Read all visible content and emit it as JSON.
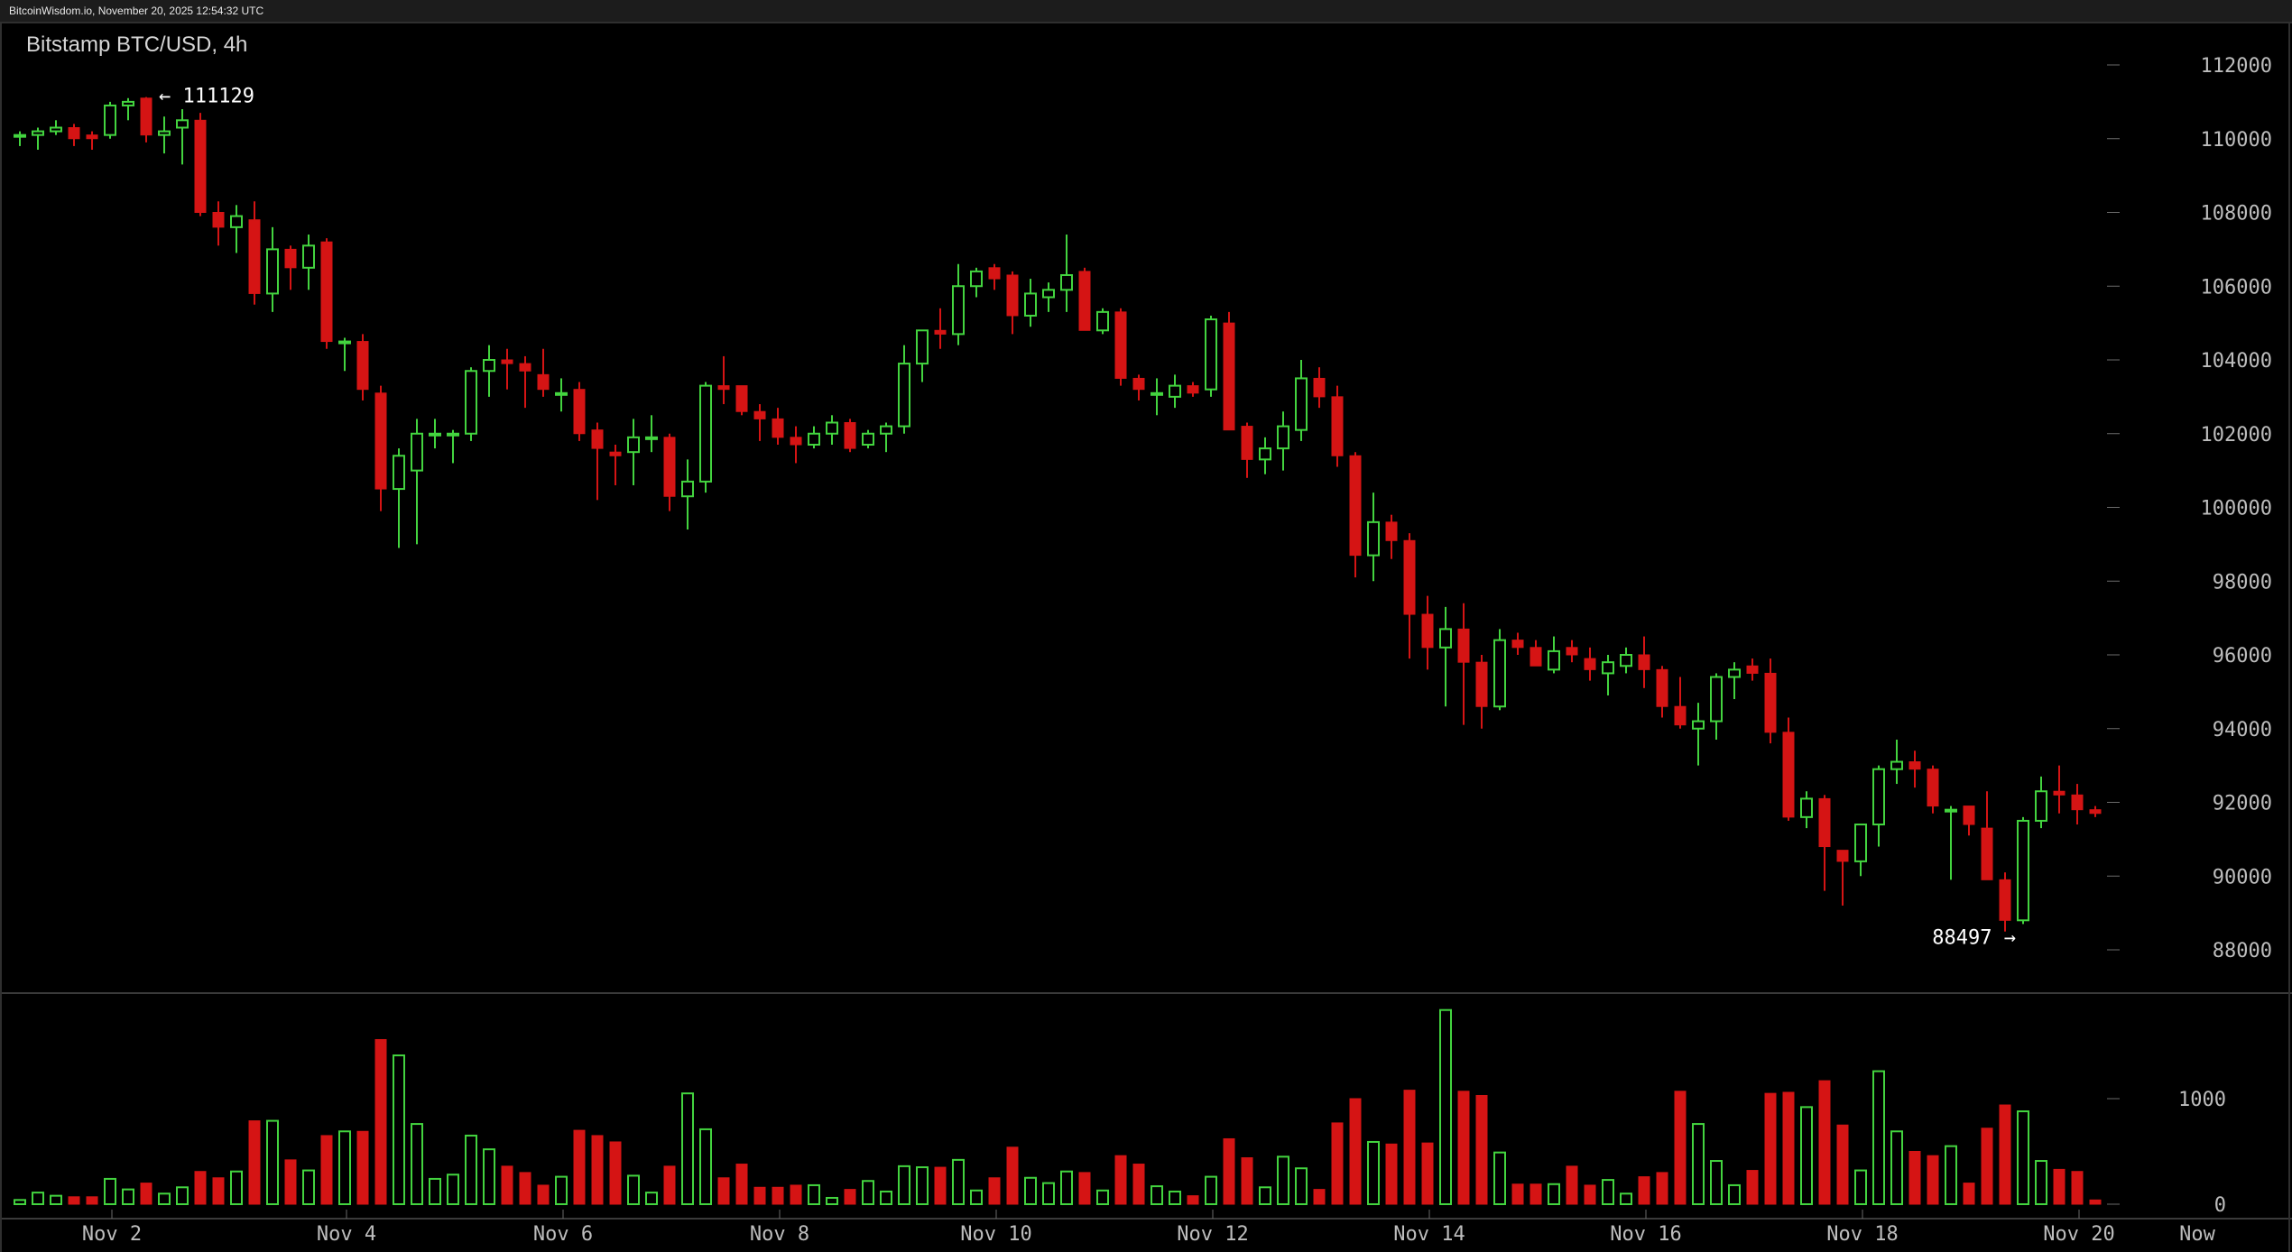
{
  "header": {
    "source_line": "BitcoinWisdom.io, November 20, 2025 12:54:32 UTC"
  },
  "chart": {
    "title": "Bitstamp BTC/USD, 4h"
  },
  "colors": {
    "up": "#43d43f",
    "down": "#d51414",
    "background": "#000000",
    "axis_text": "#bdbdbd"
  },
  "annotations": {
    "high": "← 111129",
    "low": "88497 →"
  },
  "chart_data": [
    {
      "type": "candlestick",
      "title": "Bitstamp BTC/USD, 4h",
      "interval": "4h",
      "ylim": [
        87000,
        113000
      ],
      "y_ticks": [
        88000,
        90000,
        92000,
        94000,
        96000,
        98000,
        100000,
        102000,
        104000,
        106000,
        108000,
        110000,
        112000
      ],
      "y_tick_labels": [
        "88000",
        "90000",
        "92000",
        "94000",
        "96000",
        "98000",
        "100000",
        "102000",
        "104000",
        "106000",
        "108000",
        "110000",
        "112000"
      ],
      "x_ticks": [
        {
          "label": "Nov 2",
          "index": 5
        },
        {
          "label": "Nov 4",
          "index": 18
        },
        {
          "label": "Nov 6",
          "index": 30
        },
        {
          "label": "Nov 8",
          "index": 42
        },
        {
          "label": "Nov 10",
          "index": 54
        },
        {
          "label": "Nov 12",
          "index": 66
        },
        {
          "label": "Nov 14",
          "index": 78
        },
        {
          "label": "Nov 16",
          "index": 90
        },
        {
          "label": "Nov 18",
          "index": 102
        },
        {
          "label": "Nov 20",
          "index": 114
        },
        {
          "label": "Now",
          "index": 120
        }
      ],
      "high_marker": {
        "value": 111129,
        "label": "← 111129",
        "index": 7
      },
      "low_marker": {
        "value": 88497,
        "label": "88497 →",
        "index": 111
      },
      "candles": [
        [
          110100,
          110200,
          109800,
          110100
        ],
        [
          110100,
          110300,
          109700,
          110200
        ],
        [
          110200,
          110500,
          110100,
          110300
        ],
        [
          110300,
          110400,
          109800,
          110000
        ],
        [
          110100,
          110200,
          109700,
          110000
        ],
        [
          110100,
          111000,
          110000,
          110900
        ],
        [
          110900,
          111100,
          110500,
          111000
        ],
        [
          111100,
          111129,
          109900,
          110100
        ],
        [
          110100,
          110600,
          109600,
          110200
        ],
        [
          110300,
          110800,
          109300,
          110500
        ],
        [
          110500,
          110700,
          107900,
          108000
        ],
        [
          108000,
          108300,
          107100,
          107600
        ],
        [
          107600,
          108200,
          106900,
          107900
        ],
        [
          107800,
          108300,
          105500,
          105800
        ],
        [
          105800,
          107600,
          105300,
          107000
        ],
        [
          107000,
          107100,
          105900,
          106500
        ],
        [
          106500,
          107400,
          105900,
          107100
        ],
        [
          107200,
          107300,
          104300,
          104500
        ],
        [
          104500,
          104600,
          103700,
          104500
        ],
        [
          104500,
          104700,
          102900,
          103200
        ],
        [
          103100,
          103300,
          99900,
          100500
        ],
        [
          100500,
          101600,
          98900,
          101400
        ],
        [
          101000,
          102400,
          99000,
          102000
        ],
        [
          102000,
          102400,
          101600,
          102000
        ],
        [
          102000,
          102100,
          101200,
          102000
        ],
        [
          102000,
          103800,
          101800,
          103700
        ],
        [
          103700,
          104400,
          103000,
          104000
        ],
        [
          104000,
          104300,
          103200,
          103900
        ],
        [
          103900,
          104100,
          102700,
          103700
        ],
        [
          103600,
          104300,
          103000,
          103200
        ],
        [
          103100,
          103500,
          102600,
          103100
        ],
        [
          103200,
          103400,
          101800,
          102000
        ],
        [
          102100,
          102300,
          100200,
          101600
        ],
        [
          101500,
          101700,
          100600,
          101400
        ],
        [
          101500,
          102400,
          100600,
          101900
        ],
        [
          101900,
          102500,
          101500,
          101900
        ],
        [
          101900,
          102000,
          99900,
          100300
        ],
        [
          100300,
          101300,
          99400,
          100700
        ],
        [
          100700,
          103400,
          100400,
          103300
        ],
        [
          103300,
          104100,
          102800,
          103200
        ],
        [
          103300,
          103300,
          102500,
          102600
        ],
        [
          102600,
          102800,
          101800,
          102400
        ],
        [
          102400,
          102700,
          101700,
          101900
        ],
        [
          101900,
          102200,
          101200,
          101700
        ],
        [
          101700,
          102200,
          101600,
          102000
        ],
        [
          102000,
          102500,
          101700,
          102300
        ],
        [
          102300,
          102400,
          101500,
          101600
        ],
        [
          101700,
          102100,
          101600,
          102000
        ],
        [
          102000,
          102300,
          101500,
          102200
        ],
        [
          102200,
          104400,
          102000,
          103900
        ],
        [
          103900,
          104800,
          103400,
          104800
        ],
        [
          104800,
          105400,
          104300,
          104700
        ],
        [
          104700,
          106600,
          104400,
          106000
        ],
        [
          106000,
          106500,
          105700,
          106400
        ],
        [
          106500,
          106600,
          105900,
          106200
        ],
        [
          106300,
          106400,
          104700,
          105200
        ],
        [
          105200,
          106200,
          104900,
          105800
        ],
        [
          105700,
          106100,
          105300,
          105900
        ],
        [
          105900,
          107400,
          105300,
          106300
        ],
        [
          106400,
          106500,
          104800,
          104800
        ],
        [
          104800,
          105400,
          104700,
          105300
        ],
        [
          105300,
          105400,
          103300,
          103500
        ],
        [
          103500,
          103600,
          102900,
          103200
        ],
        [
          103100,
          103500,
          102500,
          103100
        ],
        [
          103000,
          103600,
          102700,
          103300
        ],
        [
          103300,
          103400,
          103000,
          103100
        ],
        [
          103200,
          105200,
          103000,
          105100
        ],
        [
          105000,
          105300,
          102100,
          102100
        ],
        [
          102200,
          102300,
          100800,
          101300
        ],
        [
          101300,
          101900,
          100900,
          101600
        ],
        [
          101600,
          102600,
          101000,
          102200
        ],
        [
          102100,
          104000,
          101800,
          103500
        ],
        [
          103500,
          103800,
          102700,
          103000
        ],
        [
          103000,
          103300,
          101100,
          101400
        ],
        [
          101400,
          101500,
          98100,
          98700
        ],
        [
          98700,
          100400,
          98000,
          99600
        ],
        [
          99600,
          99800,
          98600,
          99100
        ],
        [
          99100,
          99300,
          95900,
          97100
        ],
        [
          97100,
          97600,
          95600,
          96200
        ],
        [
          96200,
          97300,
          94600,
          96700
        ],
        [
          96700,
          97400,
          94100,
          95800
        ],
        [
          95800,
          96000,
          94000,
          94600
        ],
        [
          94600,
          96700,
          94500,
          96400
        ],
        [
          96400,
          96600,
          96000,
          96200
        ],
        [
          96200,
          96400,
          95700,
          95700
        ],
        [
          95600,
          96500,
          95500,
          96100
        ],
        [
          96200,
          96400,
          95800,
          96000
        ],
        [
          95900,
          96200,
          95300,
          95600
        ],
        [
          95500,
          96000,
          94900,
          95800
        ],
        [
          95700,
          96200,
          95500,
          96000
        ],
        [
          96000,
          96500,
          95100,
          95600
        ],
        [
          95600,
          95700,
          94300,
          94600
        ],
        [
          94600,
          95400,
          94000,
          94100
        ],
        [
          94000,
          94700,
          93000,
          94200
        ],
        [
          94200,
          95500,
          93700,
          95400
        ],
        [
          95400,
          95800,
          94800,
          95600
        ],
        [
          95700,
          95900,
          95300,
          95500
        ],
        [
          95500,
          95900,
          93600,
          93900
        ],
        [
          93900,
          94300,
          91500,
          91600
        ],
        [
          91600,
          92300,
          91300,
          92100
        ],
        [
          92100,
          92200,
          89600,
          90800
        ],
        [
          90700,
          90700,
          89200,
          90400
        ],
        [
          90400,
          91400,
          90000,
          91400
        ],
        [
          91400,
          93000,
          90800,
          92900
        ],
        [
          92900,
          93700,
          92500,
          93100
        ],
        [
          93100,
          93400,
          92400,
          92900
        ],
        [
          92900,
          93000,
          91700,
          91900
        ],
        [
          91800,
          91900,
          89900,
          91800
        ],
        [
          91900,
          91900,
          91100,
          91400
        ],
        [
          91300,
          92300,
          89900,
          89900
        ],
        [
          89900,
          90100,
          88497,
          88800
        ],
        [
          88800,
          91600,
          88700,
          91500
        ],
        [
          91500,
          92700,
          91300,
          92300
        ],
        [
          92300,
          93000,
          91700,
          92200
        ],
        [
          92200,
          92500,
          91400,
          91800
        ],
        [
          91800,
          91900,
          91600,
          91700
        ]
      ],
      "volume": {
        "ylim": [
          0,
          1800
        ],
        "y_ticks": [
          0,
          1000
        ],
        "y_tick_labels": [
          "0",
          "1000"
        ],
        "values": [
          40,
          110,
          80,
          70,
          70,
          240,
          140,
          200,
          100,
          160,
          310,
          250,
          310,
          790,
          790,
          420,
          320,
          650,
          690,
          690,
          1560,
          1410,
          760,
          240,
          280,
          650,
          520,
          360,
          300,
          180,
          260,
          700,
          650,
          590,
          270,
          110,
          360,
          1050,
          710,
          250,
          380,
          160,
          160,
          180,
          180,
          60,
          140,
          220,
          120,
          360,
          350,
          350,
          420,
          130,
          250,
          540,
          250,
          200,
          310,
          300,
          130,
          460,
          380,
          170,
          120,
          80,
          260,
          620,
          440,
          160,
          450,
          340,
          140,
          770,
          1000,
          590,
          570,
          1080,
          580,
          1840,
          1070,
          1030,
          490,
          190,
          190,
          190,
          360,
          180,
          230,
          100,
          260,
          300,
          1070,
          760,
          410,
          180,
          320,
          1050,
          1060,
          920,
          1170,
          750,
          320,
          1260,
          690,
          500,
          460,
          550,
          200,
          720,
          940,
          880,
          410,
          330,
          310,
          40
        ]
      }
    }
  ]
}
